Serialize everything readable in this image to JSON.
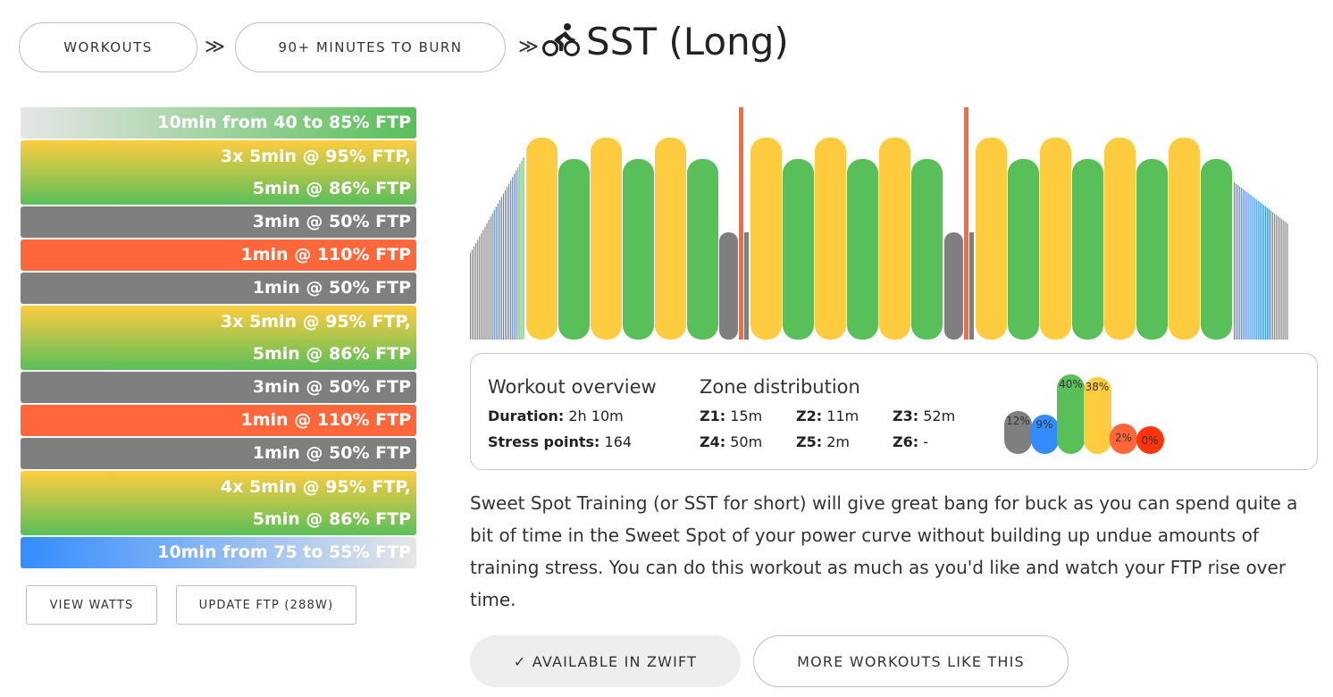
{
  "breadcrumb": {
    "items": [
      {
        "label": "WORKOUTS"
      },
      {
        "label": "90+ MINUTES TO BURN"
      }
    ],
    "separator": "≫"
  },
  "title": "SST (Long)",
  "title_icon": "cyclist-icon",
  "segments": [
    {
      "lines": [
        "10min from 40 to 85% FTP"
      ],
      "style": "warmup"
    },
    {
      "lines": [
        "3x 5min @ 95% FTP,",
        "5min @ 86% FTP"
      ],
      "style": "interval"
    },
    {
      "lines": [
        "3min @ 50% FTP"
      ],
      "style": "rest"
    },
    {
      "lines": [
        "1min @ 110% FTP"
      ],
      "style": "hard"
    },
    {
      "lines": [
        "1min @ 50% FTP"
      ],
      "style": "rest"
    },
    {
      "lines": [
        "3x 5min @ 95% FTP,",
        "5min @ 86% FTP"
      ],
      "style": "interval"
    },
    {
      "lines": [
        "3min @ 50% FTP"
      ],
      "style": "rest"
    },
    {
      "lines": [
        "1min @ 110% FTP"
      ],
      "style": "hard"
    },
    {
      "lines": [
        "1min @ 50% FTP"
      ],
      "style": "rest"
    },
    {
      "lines": [
        "4x 5min @ 95% FTP,",
        "5min @ 86% FTP"
      ],
      "style": "interval"
    },
    {
      "lines": [
        "10min from 75 to 55% FTP"
      ],
      "style": "cooldown"
    }
  ],
  "buttons": {
    "view_watts": "VIEW WATTS",
    "update_ftp": "UPDATE FTP (288W)",
    "available": "✓ AVAILABLE IN ZWIFT",
    "more": "MORE WORKOUTS LIKE THIS"
  },
  "colors": {
    "z1": "#7f7f7f",
    "z2": "#338cff",
    "z3": "#59bf59",
    "z4": "#ffcc3f",
    "z5": "#ff6639",
    "z6": "#ff330c"
  },
  "overview": {
    "heading": "Workout overview",
    "duration_label": "Duration:",
    "duration_value": "2h 10m",
    "stress_label": "Stress points:",
    "stress_value": "164"
  },
  "zones": {
    "heading": "Zone distribution",
    "times": [
      {
        "label": "Z1:",
        "value": "15m"
      },
      {
        "label": "Z2:",
        "value": "11m"
      },
      {
        "label": "Z3:",
        "value": "52m"
      },
      {
        "label": "Z4:",
        "value": "50m"
      },
      {
        "label": "Z5:",
        "value": "2m"
      },
      {
        "label": "Z6:",
        "value": "-"
      }
    ],
    "distribution": [
      {
        "zone": "z1",
        "label": "12%",
        "pct": 12
      },
      {
        "zone": "z2",
        "label": "9%",
        "pct": 9
      },
      {
        "zone": "z3",
        "label": "40%",
        "pct": 40
      },
      {
        "zone": "z4",
        "label": "38%",
        "pct": 38
      },
      {
        "zone": "z5",
        "label": "2%",
        "pct": 2
      },
      {
        "zone": "z6",
        "label": "0%",
        "pct": 0
      }
    ]
  },
  "description": "Sweet Spot Training (or SST for short) will give great bang for buck as you can spend quite a bit of time in the Sweet Spot of your power curve without building up undue amounts of training stress. You can do this workout as much as you'd like and watch your FTP rise over time."
}
